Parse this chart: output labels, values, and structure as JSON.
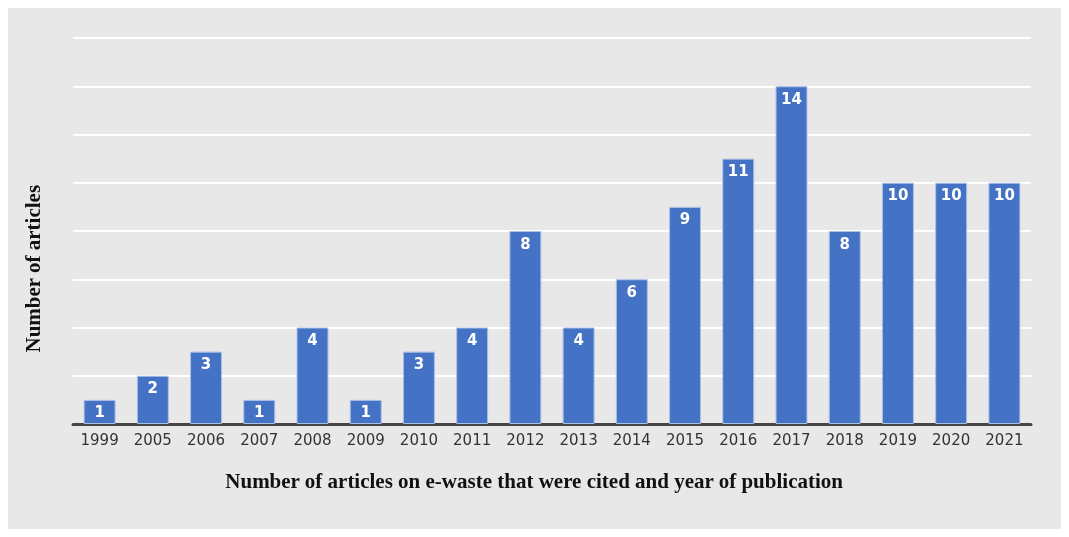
{
  "chart_data": {
    "type": "bar",
    "xlabel": "Number of articles on e-waste that were cited and year of publication",
    "ylabel": "Number of articles",
    "categories": [
      "1999",
      "2005",
      "2006",
      "2007",
      "2008",
      "2009",
      "2010",
      "2011",
      "2012",
      "2013",
      "2014",
      "2015",
      "2016",
      "2017",
      "2018",
      "2019",
      "2020",
      "2021"
    ],
    "values": [
      1,
      2,
      3,
      1,
      4,
      1,
      3,
      4,
      8,
      4,
      6,
      9,
      11,
      14,
      8,
      10,
      10,
      10
    ],
    "color": "#4472c4",
    "ylim": [
      0,
      16
    ],
    "yticks": [
      {
        "value": 0,
        "label": null
      },
      {
        "value": 2,
        "label": null
      },
      {
        "value": 4,
        "label": null
      },
      {
        "value": 6,
        "label": null
      },
      {
        "value": 8,
        "label": null
      },
      {
        "value": 10,
        "label": null
      },
      {
        "value": 12,
        "label": null
      },
      {
        "value": 14,
        "label": null
      },
      {
        "value": 16,
        "label": null
      }
    ],
    "tick_labels": "x",
    "grid": "y",
    "data_labels": true
  }
}
